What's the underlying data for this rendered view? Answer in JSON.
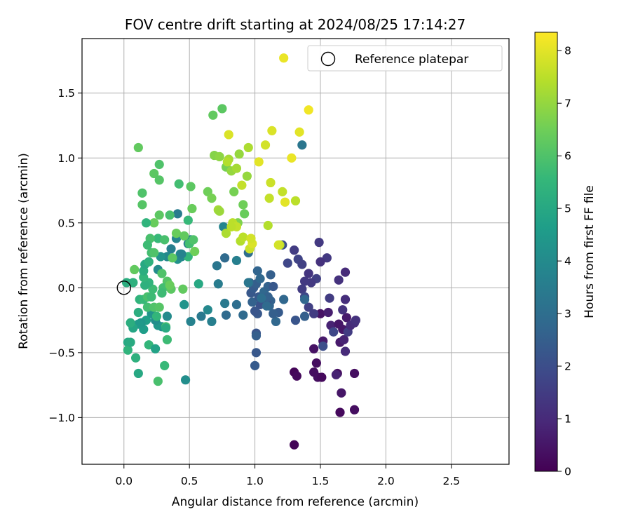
{
  "chart_data": {
    "type": "scatter",
    "title": "FOV centre drift starting at 2024/08/25 17:14:27",
    "xlabel": "Angular distance from reference (arcmin)",
    "ylabel": "Rotation from reference (arcmin)",
    "xlim": [
      -0.32,
      2.94
    ],
    "ylim": [
      -1.36,
      1.92
    ],
    "xticks": [
      0.0,
      0.5,
      1.0,
      1.5,
      2.0,
      2.5
    ],
    "xtick_labels": [
      "0.0",
      "0.5",
      "1.0",
      "1.5",
      "2.0",
      "2.5"
    ],
    "yticks": [
      -1.0,
      -0.5,
      0.0,
      0.5,
      1.0,
      1.5
    ],
    "ytick_labels": [
      "−1.0",
      "−0.5",
      "0.0",
      "0.5",
      "1.0",
      "1.5"
    ],
    "grid": true,
    "legend": {
      "position": "top-right",
      "entries": [
        {
          "label": "Reference platepar",
          "marker": "open-circle",
          "x": 0.0,
          "y": 0.0
        }
      ]
    },
    "colorbar": {
      "label": "Hours from first FF file",
      "range": [
        0,
        8.35
      ],
      "ticks": [
        0,
        1,
        2,
        3,
        4,
        5,
        6,
        7,
        8
      ],
      "tick_labels": [
        "0",
        "1",
        "2",
        "3",
        "4",
        "5",
        "6",
        "7",
        "8"
      ],
      "colormap": "viridis",
      "stops": [
        "#440154",
        "#482878",
        "#3e4989",
        "#31688e",
        "#26828e",
        "#1f9e89",
        "#35b779",
        "#6ece58",
        "#b5de2b",
        "#fde725"
      ]
    },
    "points": [
      [
        1.3,
        -1.21,
        0.1
      ],
      [
        1.3,
        -0.65,
        0.1
      ],
      [
        1.32,
        -0.68,
        0.2
      ],
      [
        1.45,
        -0.65,
        0.3
      ],
      [
        1.48,
        -0.69,
        0.3
      ],
      [
        1.51,
        -0.69,
        0.2
      ],
      [
        1.63,
        -0.66,
        0.3
      ],
      [
        1.65,
        -0.96,
        0.2
      ],
      [
        1.76,
        -0.94,
        0.3
      ],
      [
        1.76,
        -0.66,
        0.3
      ],
      [
        1.66,
        -0.81,
        0.5
      ],
      [
        1.47,
        -0.58,
        0.3
      ],
      [
        1.45,
        -0.47,
        0.4
      ],
      [
        1.5,
        -0.2,
        0.4
      ],
      [
        1.52,
        -0.41,
        0.6
      ],
      [
        1.56,
        -0.19,
        0.7
      ],
      [
        1.58,
        -0.29,
        0.8
      ],
      [
        1.62,
        -0.67,
        0.8
      ],
      [
        1.64,
        -0.28,
        0.5
      ],
      [
        1.65,
        -0.42,
        0.6
      ],
      [
        1.67,
        -0.32,
        0.5
      ],
      [
        1.68,
        -0.4,
        0.8
      ],
      [
        1.69,
        -0.49,
        1.0
      ],
      [
        1.7,
        -0.23,
        0.6
      ],
      [
        1.71,
        -0.34,
        1.5
      ],
      [
        1.73,
        -0.29,
        1.0
      ],
      [
        1.76,
        -0.27,
        1.1
      ],
      [
        1.77,
        -0.25,
        1.2
      ],
      [
        1.67,
        -0.17,
        1.2
      ],
      [
        1.69,
        -0.09,
        1.1
      ],
      [
        1.69,
        0.12,
        1.0
      ],
      [
        1.64,
        0.06,
        1.2
      ],
      [
        1.57,
        -0.08,
        1.5
      ],
      [
        1.55,
        0.23,
        1.4
      ],
      [
        1.5,
        0.2,
        1.2
      ],
      [
        1.49,
        0.35,
        1.4
      ],
      [
        1.47,
        0.07,
        1.6
      ],
      [
        1.43,
        0.04,
        1.4
      ],
      [
        1.41,
        0.11,
        1.3
      ],
      [
        1.38,
        0.05,
        1.4
      ],
      [
        1.36,
        -0.01,
        1.5
      ],
      [
        1.38,
        -0.07,
        1.8
      ],
      [
        1.41,
        -0.15,
        1.6
      ],
      [
        1.45,
        -0.2,
        1.5
      ],
      [
        1.52,
        -0.45,
        2.0
      ],
      [
        1.6,
        -0.34,
        1.8
      ],
      [
        1.31,
        -0.25,
        2.2
      ],
      [
        1.38,
        -0.22,
        2.5
      ],
      [
        1.3,
        0.29,
        1.5
      ],
      [
        1.33,
        0.22,
        1.7
      ],
      [
        1.36,
        0.18,
        1.6
      ],
      [
        1.25,
        0.19,
        1.8
      ],
      [
        1.21,
        0.33,
        2.0
      ],
      [
        1.22,
        -0.09,
        2.8
      ],
      [
        1.18,
        -0.19,
        2.4
      ],
      [
        1.16,
        -0.26,
        2.8
      ],
      [
        1.14,
        -0.2,
        2.5
      ],
      [
        1.12,
        -0.1,
        2.6
      ],
      [
        1.11,
        -0.14,
        2.7
      ],
      [
        1.09,
        -0.12,
        2.2
      ],
      [
        1.06,
        -0.06,
        2.4
      ],
      [
        1.04,
        -0.13,
        2.1
      ],
      [
        1.02,
        -0.2,
        2.3
      ],
      [
        1.0,
        -0.18,
        2.2
      ],
      [
        0.98,
        -0.11,
        2.6
      ],
      [
        0.97,
        -0.04,
        2.3
      ],
      [
        0.99,
        0.0,
        2.4
      ],
      [
        1.01,
        0.03,
        2.5
      ],
      [
        1.03,
        -0.07,
        2.3
      ],
      [
        1.07,
        -0.03,
        2.8
      ],
      [
        1.1,
        0.01,
        2.6
      ],
      [
        1.12,
        0.1,
        2.5
      ],
      [
        1.14,
        0.01,
        2.3
      ],
      [
        1.1,
        -0.07,
        2.6
      ],
      [
        1.09,
        -0.14,
        2.9
      ],
      [
        1.05,
        -0.08,
        3.0
      ],
      [
        1.02,
        0.13,
        2.7
      ],
      [
        1.04,
        0.07,
        2.8
      ],
      [
        0.96,
        0.04,
        2.6
      ],
      [
        0.91,
        -0.21,
        2.9
      ],
      [
        1.01,
        -0.35,
        2.2
      ],
      [
        1.01,
        -0.37,
        2.5
      ],
      [
        1.01,
        -0.5,
        2.3
      ],
      [
        1.0,
        -0.6,
        2.4
      ],
      [
        0.95,
        0.27,
        3.0
      ],
      [
        0.95,
        0.04,
        3.3
      ],
      [
        0.86,
        -0.13,
        3.0
      ],
      [
        0.78,
        -0.21,
        2.9
      ],
      [
        0.77,
        -0.12,
        3.4
      ],
      [
        0.72,
        0.03,
        3.5
      ],
      [
        0.71,
        0.17,
        3.3
      ],
      [
        0.77,
        0.23,
        2.9
      ],
      [
        0.86,
        0.21,
        3.6
      ],
      [
        0.76,
        0.47,
        3.8
      ],
      [
        0.67,
        -0.26,
        3.6
      ],
      [
        0.64,
        -0.17,
        3.9
      ],
      [
        0.59,
        -0.22,
        3.4
      ],
      [
        0.51,
        -0.26,
        3.7
      ],
      [
        0.47,
        -0.71,
        4.1
      ],
      [
        0.57,
        0.03,
        5.0
      ],
      [
        0.49,
        0.34,
        3.5
      ],
      [
        0.51,
        0.37,
        3.7
      ],
      [
        0.43,
        0.26,
        4.0
      ],
      [
        0.41,
        0.22,
        4.2
      ],
      [
        0.44,
        0.24,
        3.9
      ],
      [
        0.4,
        0.38,
        3.8
      ],
      [
        0.36,
        0.3,
        3.6
      ],
      [
        0.41,
        0.57,
        3.5
      ],
      [
        0.33,
        0.24,
        3.9
      ],
      [
        0.28,
        0.24,
        4.3
      ],
      [
        0.26,
        0.14,
        4.0
      ],
      [
        0.29,
        -0.04,
        4.2
      ],
      [
        0.33,
        -0.22,
        4.0
      ],
      [
        0.29,
        -0.3,
        4.1
      ],
      [
        0.26,
        -0.29,
        4.4
      ],
      [
        0.24,
        -0.25,
        4.1
      ],
      [
        0.21,
        -0.2,
        4.3
      ],
      [
        0.17,
        -0.25,
        4.7
      ],
      [
        0.15,
        -0.32,
        4.6
      ],
      [
        0.13,
        -0.27,
        4.4
      ],
      [
        0.11,
        -0.28,
        4.5
      ],
      [
        0.07,
        -0.31,
        4.9
      ],
      [
        0.03,
        -0.42,
        5.0
      ],
      [
        0.05,
        -0.27,
        5.2
      ],
      [
        0.03,
        -0.48,
        5.4
      ],
      [
        0.05,
        -0.42,
        5.1
      ],
      [
        0.09,
        -0.54,
        5.3
      ],
      [
        0.11,
        -0.66,
        5.0
      ],
      [
        0.19,
        -0.44,
        5.5
      ],
      [
        0.24,
        -0.47,
        4.8
      ],
      [
        0.26,
        -0.72,
        5.9
      ],
      [
        0.31,
        -0.6,
        5.6
      ],
      [
        0.33,
        -0.4,
        5.7
      ],
      [
        0.32,
        -0.3,
        5.9
      ],
      [
        0.25,
        -0.22,
        5.5
      ],
      [
        0.18,
        -0.15,
        5.8
      ],
      [
        0.12,
        -0.09,
        5.4
      ],
      [
        0.11,
        -0.19,
        5.2
      ],
      [
        0.15,
        -0.09,
        5.6
      ],
      [
        0.18,
        -0.07,
        5.9
      ],
      [
        0.21,
        -0.07,
        5.7
      ],
      [
        0.23,
        -0.15,
        6.0
      ],
      [
        0.27,
        -0.15,
        6.1
      ],
      [
        0.22,
        -0.01,
        5.7
      ],
      [
        0.19,
        0.04,
        5.4
      ],
      [
        0.16,
        0.02,
        5.3
      ],
      [
        0.15,
        0.08,
        5.5
      ],
      [
        0.15,
        0.13,
        5.2
      ],
      [
        0.16,
        0.18,
        5.0
      ],
      [
        0.19,
        0.2,
        5.3
      ],
      [
        0.21,
        0.27,
        5.8
      ],
      [
        0.23,
        0.27,
        6.0
      ],
      [
        0.26,
        0.38,
        5.6
      ],
      [
        0.31,
        0.37,
        5.9
      ],
      [
        0.29,
        0.11,
        6.0
      ],
      [
        0.33,
        0.05,
        6.1
      ],
      [
        0.3,
        0.0,
        5.8
      ],
      [
        0.29,
        -0.04,
        5.7
      ],
      [
        0.36,
        -0.01,
        6.2
      ],
      [
        0.35,
        0.02,
        6.4
      ],
      [
        0.37,
        0.23,
        6.2
      ],
      [
        0.4,
        0.42,
        6.4
      ],
      [
        0.46,
        0.4,
        6.3
      ],
      [
        0.49,
        0.52,
        5.6
      ],
      [
        0.5,
        0.34,
        5.8
      ],
      [
        0.49,
        0.24,
        5.5
      ],
      [
        0.54,
        0.28,
        6.5
      ],
      [
        0.53,
        0.37,
        6.0
      ],
      [
        0.52,
        0.61,
        6.4
      ],
      [
        0.51,
        0.78,
        6.2
      ],
      [
        0.42,
        0.8,
        5.8
      ],
      [
        0.35,
        0.56,
        5.9
      ],
      [
        0.27,
        0.56,
        6.2
      ],
      [
        0.23,
        0.5,
        6.4
      ],
      [
        0.17,
        0.5,
        5.4
      ],
      [
        0.2,
        0.38,
        5.9
      ],
      [
        0.18,
        0.33,
        5.7
      ],
      [
        0.14,
        0.64,
        6.1
      ],
      [
        0.14,
        0.73,
        6.0
      ],
      [
        0.23,
        0.88,
        6.2
      ],
      [
        0.27,
        0.95,
        6.0
      ],
      [
        0.27,
        0.83,
        6.1
      ],
      [
        0.11,
        1.08,
        6.3
      ],
      [
        0.07,
        0.04,
        5.3
      ],
      [
        0.02,
        0.04,
        5.2
      ],
      [
        0.08,
        0.14,
        6.3
      ],
      [
        0.44,
        0.26,
        3.7
      ],
      [
        0.46,
        -0.13,
        4.3
      ],
      [
        0.45,
        -0.01,
        6.3
      ],
      [
        0.32,
        -0.31,
        5.1
      ],
      [
        0.64,
        0.74,
        6.5
      ],
      [
        0.67,
        0.69,
        6.6
      ],
      [
        0.68,
        1.33,
        6.3
      ],
      [
        0.69,
        1.02,
        6.8
      ],
      [
        0.73,
        1.01,
        6.9
      ],
      [
        0.75,
        1.38,
        6.2
      ],
      [
        0.78,
        0.93,
        6.6
      ],
      [
        0.8,
        0.99,
        7.2
      ],
      [
        0.82,
        0.9,
        7.0
      ],
      [
        0.84,
        0.74,
        6.6
      ],
      [
        0.86,
        0.92,
        7.2
      ],
      [
        0.87,
        0.5,
        6.7
      ],
      [
        0.89,
        0.36,
        7.4
      ],
      [
        0.91,
        0.39,
        7.5
      ],
      [
        0.91,
        0.64,
        6.5
      ],
      [
        0.92,
        0.57,
        6.4
      ],
      [
        0.94,
        0.86,
        7.0
      ],
      [
        0.95,
        1.08,
        7.3
      ],
      [
        0.96,
        0.3,
        7.7
      ],
      [
        0.98,
        0.34,
        7.9
      ],
      [
        0.8,
        1.18,
        7.9
      ],
      [
        0.72,
        0.6,
        7.2
      ],
      [
        0.73,
        0.59,
        7.1
      ],
      [
        0.78,
        0.42,
        7.3
      ],
      [
        0.83,
        0.5,
        7.5
      ],
      [
        0.86,
        0.47,
        7.6
      ],
      [
        0.9,
        0.79,
        7.6
      ],
      [
        0.97,
        0.38,
        7.8
      ],
      [
        0.88,
        1.03,
        7.0
      ],
      [
        0.82,
        0.47,
        7.5
      ],
      [
        0.79,
        0.97,
        7.4
      ],
      [
        1.03,
        0.97,
        8.0
      ],
      [
        1.08,
        1.1,
        7.8
      ],
      [
        1.1,
        0.48,
        7.4
      ],
      [
        1.11,
        0.69,
        7.6
      ],
      [
        1.12,
        0.81,
        7.7
      ],
      [
        1.13,
        1.21,
        7.9
      ],
      [
        1.19,
        0.33,
        7.5
      ],
      [
        1.21,
        0.74,
        7.6
      ],
      [
        1.23,
        0.66,
        8.0
      ],
      [
        1.28,
        1.0,
        8.1
      ],
      [
        1.31,
        0.67,
        7.5
      ],
      [
        1.34,
        1.2,
        8.0
      ],
      [
        1.36,
        1.1,
        3.3
      ],
      [
        1.41,
        1.37,
        8.2
      ],
      [
        1.22,
        1.77,
        8.1
      ],
      [
        1.38,
        -0.09,
        2.8
      ],
      [
        1.18,
        0.33,
        7.8
      ]
    ]
  }
}
